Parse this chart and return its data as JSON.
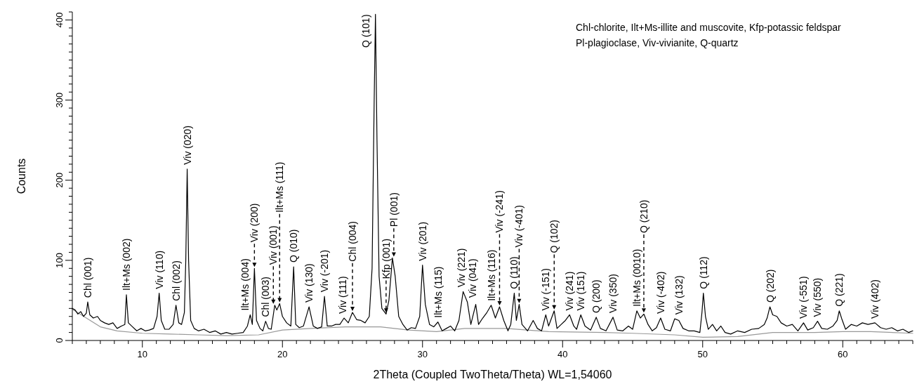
{
  "chart_data": {
    "type": "line",
    "xlabel": "2Theta (Coupled TwoTheta/Theta) WL=1,54060",
    "ylabel": "Counts",
    "xlim": [
      5,
      65
    ],
    "ylim": [
      0,
      410
    ],
    "xticks": [
      {
        "value": 5,
        "label": null
      },
      {
        "value": 6,
        "label": null
      },
      {
        "value": 7,
        "label": null
      },
      {
        "value": 8,
        "label": null
      },
      {
        "value": 9,
        "label": null
      },
      10,
      {
        "value": 11,
        "label": null
      },
      {
        "value": 12,
        "label": null
      },
      {
        "value": 13,
        "label": null
      },
      {
        "value": 14,
        "label": null
      },
      {
        "value": 15,
        "label": null
      },
      {
        "value": 16,
        "label": null
      },
      {
        "value": 17,
        "label": null
      },
      {
        "value": 18,
        "label": null
      },
      {
        "value": 19,
        "label": null
      },
      20,
      {
        "value": 21,
        "label": null
      },
      {
        "value": 22,
        "label": null
      },
      {
        "value": 23,
        "label": null
      },
      {
        "value": 24,
        "label": null
      },
      {
        "value": 25,
        "label": null
      },
      {
        "value": 26,
        "label": null
      },
      {
        "value": 27,
        "label": null
      },
      {
        "value": 28,
        "label": null
      },
      {
        "value": 29,
        "label": null
      },
      30,
      {
        "value": 31,
        "label": null
      },
      {
        "value": 32,
        "label": null
      },
      {
        "value": 33,
        "label": null
      },
      {
        "value": 34,
        "label": null
      },
      {
        "value": 35,
        "label": null
      },
      {
        "value": 36,
        "label": null
      },
      {
        "value": 37,
        "label": null
      },
      {
        "value": 38,
        "label": null
      },
      {
        "value": 39,
        "label": null
      },
      40,
      {
        "value": 41,
        "label": null
      },
      {
        "value": 42,
        "label": null
      },
      {
        "value": 43,
        "label": null
      },
      {
        "value": 44,
        "label": null
      },
      {
        "value": 45,
        "label": null
      },
      {
        "value": 46,
        "label": null
      },
      {
        "value": 47,
        "label": null
      },
      {
        "value": 48,
        "label": null
      },
      {
        "value": 49,
        "label": null
      },
      50,
      {
        "value": 51,
        "label": null
      },
      {
        "value": 52,
        "label": null
      },
      {
        "value": 53,
        "label": null
      },
      {
        "value": 54,
        "label": null
      },
      {
        "value": 55,
        "label": null
      },
      {
        "value": 56,
        "label": null
      },
      {
        "value": 57,
        "label": null
      },
      {
        "value": 58,
        "label": null
      },
      {
        "value": 59,
        "label": null
      },
      60,
      {
        "value": 61,
        "label": null
      },
      {
        "value": 62,
        "label": null
      },
      {
        "value": 63,
        "label": null
      },
      {
        "value": 64,
        "label": null
      },
      {
        "value": 65,
        "label": null
      }
    ],
    "yticks": [
      0,
      {
        "value": 10,
        "label": null
      },
      {
        "value": 20,
        "label": null
      },
      {
        "value": 30,
        "label": null
      },
      {
        "value": 40,
        "label": null
      },
      {
        "value": 50,
        "label": null
      },
      {
        "value": 60,
        "label": null
      },
      {
        "value": 70,
        "label": null
      },
      {
        "value": 80,
        "label": null
      },
      {
        "value": 90,
        "label": null
      },
      100,
      {
        "value": 110,
        "label": null
      },
      {
        "value": 120,
        "label": null
      },
      {
        "value": 130,
        "label": null
      },
      {
        "value": 140,
        "label": null
      },
      {
        "value": 150,
        "label": null
      },
      {
        "value": 160,
        "label": null
      },
      {
        "value": 170,
        "label": null
      },
      {
        "value": 180,
        "label": null
      },
      {
        "value": 190,
        "label": null
      },
      200,
      {
        "value": 210,
        "label": null
      },
      {
        "value": 220,
        "label": null
      },
      {
        "value": 230,
        "label": null
      },
      {
        "value": 240,
        "label": null
      },
      {
        "value": 250,
        "label": null
      },
      {
        "value": 260,
        "label": null
      },
      {
        "value": 270,
        "label": null
      },
      {
        "value": 280,
        "label": null
      },
      {
        "value": 290,
        "label": null
      },
      300,
      {
        "value": 310,
        "label": null
      },
      {
        "value": 320,
        "label": null
      },
      {
        "value": 330,
        "label": null
      },
      {
        "value": 340,
        "label": null
      },
      {
        "value": 350,
        "label": null
      },
      {
        "value": 360,
        "label": null
      },
      {
        "value": 370,
        "label": null
      },
      {
        "value": 380,
        "label": null
      },
      {
        "value": 390,
        "label": null
      },
      400,
      {
        "value": 410,
        "label": null
      }
    ],
    "series": [
      {
        "color": "#999999",
        "x": [
          5,
          7,
          8.2,
          10,
          12,
          14,
          16,
          18.3,
          20,
          22,
          24.5,
          27,
          29,
          31,
          33,
          36,
          39,
          43,
          45,
          48,
          50,
          52.5,
          55,
          58,
          60,
          62,
          65
        ],
        "values": [
          39,
          17,
          12,
          9,
          8,
          7,
          6,
          7,
          13,
          15,
          17,
          17,
          13,
          11,
          15,
          15,
          11,
          10,
          9,
          7,
          4,
          5,
          10,
          10,
          11,
          11,
          9
        ]
      },
      {
        "color": "#000000",
        "x": [
          5.0,
          5.2,
          5.4,
          5.6,
          5.8,
          6.0,
          6.1,
          6.25,
          6.5,
          6.8,
          7.0,
          7.3,
          7.6,
          7.9,
          8.2,
          8.5,
          8.75,
          8.86,
          9.0,
          9.3,
          9.6,
          9.9,
          10.2,
          10.5,
          10.8,
          11.05,
          11.2,
          11.35,
          11.6,
          11.9,
          12.2,
          12.4,
          12.6,
          12.8,
          13.0,
          13.1,
          13.2,
          13.3,
          13.45,
          13.7,
          14.0,
          14.4,
          14.8,
          15.2,
          15.6,
          16.0,
          16.4,
          16.8,
          17.2,
          17.5,
          17.7,
          17.85,
          18.0,
          18.15,
          18.4,
          18.6,
          18.8,
          19.0,
          19.2,
          19.45,
          19.6,
          19.8,
          20.0,
          20.3,
          20.6,
          20.8,
          20.95,
          21.2,
          21.5,
          21.9,
          22.2,
          22.5,
          22.8,
          23.0,
          23.2,
          23.5,
          23.8,
          24.1,
          24.4,
          24.7,
          25.0,
          25.3,
          25.6,
          25.9,
          26.2,
          26.4,
          26.55,
          26.64,
          26.75,
          26.9,
          27.1,
          27.4,
          27.6,
          27.85,
          28.05,
          28.3,
          28.6,
          28.9,
          29.2,
          29.5,
          29.8,
          30.0,
          30.2,
          30.5,
          30.8,
          31.1,
          31.4,
          31.7,
          32.0,
          32.3,
          32.6,
          32.9,
          33.2,
          33.45,
          33.8,
          34.0,
          34.3,
          34.6,
          34.9,
          35.2,
          35.5,
          35.8,
          36.1,
          36.3,
          36.55,
          36.7,
          36.9,
          37.1,
          37.5,
          37.9,
          38.2,
          38.5,
          38.8,
          39.0,
          39.4,
          39.6,
          39.9,
          40.2,
          40.5,
          40.8,
          41.0,
          41.3,
          41.6,
          42.0,
          42.4,
          42.7,
          43.1,
          43.6,
          43.9,
          44.3,
          44.7,
          45.0,
          45.3,
          45.55,
          45.8,
          46.1,
          46.4,
          46.7,
          47.0,
          47.3,
          47.7,
          48.0,
          48.3,
          48.6,
          49.0,
          49.4,
          49.8,
          49.95,
          50.05,
          50.2,
          50.4,
          50.7,
          51.0,
          51.3,
          51.6,
          52.0,
          52.5,
          53.0,
          53.5,
          54.0,
          54.4,
          54.6,
          54.8,
          55.0,
          55.3,
          55.6,
          56.0,
          56.4,
          56.8,
          57.2,
          57.5,
          57.9,
          58.2,
          58.5,
          58.9,
          59.3,
          59.6,
          59.75,
          59.95,
          60.2,
          60.6,
          61.0,
          61.4,
          61.8,
          62.3,
          62.7,
          63.1,
          63.5,
          63.9,
          64.3,
          64.7,
          65.0
        ],
        "values": [
          40,
          38,
          33,
          36,
          30,
          34,
          48,
          32,
          28,
          30,
          25,
          22,
          20,
          22,
          15,
          18,
          20,
          57,
          22,
          17,
          12,
          15,
          12,
          13,
          15,
          30,
          59,
          25,
          14,
          14,
          20,
          44,
          22,
          20,
          35,
          100,
          214,
          100,
          25,
          15,
          12,
          14,
          10,
          12,
          8,
          10,
          8,
          9,
          10,
          18,
          32,
          20,
          90,
          25,
          15,
          12,
          24,
          15,
          14,
          44,
          38,
          46,
          30,
          22,
          18,
          92,
          20,
          16,
          18,
          42,
          18,
          15,
          17,
          55,
          18,
          18,
          20,
          20,
          28,
          22,
          35,
          26,
          25,
          22,
          30,
          90,
          300,
          407,
          250,
          80,
          40,
          33,
          50,
          103,
          80,
          30,
          20,
          13,
          16,
          15,
          30,
          94,
          45,
          20,
          17,
          23,
          12,
          15,
          18,
          12,
          25,
          61,
          48,
          20,
          45,
          20,
          28,
          35,
          44,
          28,
          42,
          25,
          12,
          20,
          59,
          25,
          45,
          20,
          12,
          25,
          15,
          12,
          32,
          18,
          37,
          15,
          20,
          25,
          32,
          18,
          14,
          32,
          18,
          13,
          29,
          15,
          12,
          29,
          13,
          12,
          18,
          14,
          37,
          28,
          33,
          20,
          12,
          16,
          28,
          14,
          12,
          27,
          25,
          15,
          12,
          12,
          10,
          35,
          59,
          30,
          14,
          20,
          12,
          18,
          10,
          8,
          12,
          10,
          14,
          15,
          20,
          28,
          42,
          32,
          30,
          22,
          18,
          20,
          12,
          22,
          13,
          16,
          24,
          15,
          14,
          18,
          25,
          37,
          26,
          14,
          20,
          18,
          22,
          20,
          22,
          16,
          14,
          16,
          12,
          14,
          10,
          12
        ]
      }
    ],
    "annotations": [
      "Chl-chlorite, Ilt+Ms-illite and muscovite, Kfp-potassic feldspar",
      "Pl-plagioclase, Viv-vivianite,  Q-quartz",
      {
        "text": "Chl (001)",
        "x": 6.1,
        "y": 48
      },
      {
        "text": "Ilt+Ms (002)",
        "x": 8.86,
        "y": 57
      },
      {
        "text": "Viv (110)",
        "x": 11.2,
        "y": 59
      },
      {
        "text": "Chl (002)",
        "x": 12.4,
        "y": 44
      },
      {
        "text": "Viv (020)",
        "x": 13.2,
        "y": 214
      },
      {
        "text": "Ilt+Ms (004)",
        "x": 17.7,
        "y": 32
      },
      {
        "text": "Viv (200)",
        "x": 18.0,
        "y": 90
      },
      {
        "text": "Chl (003)",
        "x": 18.8,
        "y": 24
      },
      {
        "text": "Viv (001)",
        "x": 19.35,
        "y": 44
      },
      {
        "text": "Ilt+Ms (111)",
        "x": 19.8,
        "y": 46
      },
      {
        "text": "Q (010)",
        "x": 20.8,
        "y": 92
      },
      {
        "text": "Viv (130)",
        "x": 21.9,
        "y": 42
      },
      {
        "text": "Viv (-201)",
        "x": 23.0,
        "y": 55
      },
      {
        "text": "Viv (111)",
        "x": 24.3,
        "y": 28
      },
      {
        "text": "Chl (004)",
        "x": 25.0,
        "y": 35
      },
      {
        "text": "Q (101)",
        "x": 26.64,
        "y": 407
      },
      {
        "text": "Kfp (001)",
        "x": 27.4,
        "y": 33
      },
      {
        "text": "Pl (001)",
        "x": 27.95,
        "y": 103
      },
      {
        "text": "Viv (201)",
        "x": 30.0,
        "y": 94
      },
      {
        "text": "Ilt+Ms (115)",
        "x": 31.1,
        "y": 23
      },
      {
        "text": "Viv (221)",
        "x": 32.75,
        "y": 61
      },
      {
        "text": "Viv (041)",
        "x": 33.2,
        "y": 48
      },
      {
        "text": "Ilt+Ms (116)",
        "x": 34.9,
        "y": 44
      },
      {
        "text": "Viv (-241)",
        "x": 35.5,
        "y": 42
      },
      {
        "text": "Q (110)",
        "x": 36.55,
        "y": 59
      },
      {
        "text": "Viv (-401)",
        "x": 36.9,
        "y": 45
      },
      {
        "text": "Viv (-151)",
        "x": 38.8,
        "y": 32
      },
      {
        "text": "Q (102)",
        "x": 39.4,
        "y": 37
      },
      {
        "text": "Viv (241)",
        "x": 40.5,
        "y": 32
      },
      {
        "text": "Viv (151)",
        "x": 41.3,
        "y": 32
      },
      {
        "text": "Q (200)",
        "x": 42.4,
        "y": 29
      },
      {
        "text": "Viv (350)",
        "x": 43.6,
        "y": 29
      },
      {
        "text": "Ilt+Ms (0010)",
        "x": 45.3,
        "y": 37
      },
      {
        "text": "Q (210)",
        "x": 45.8,
        "y": 33
      },
      {
        "text": "Viv (-402)",
        "x": 47.0,
        "y": 28
      },
      {
        "text": "Viv (132)",
        "x": 48.3,
        "y": 25
      },
      {
        "text": "Q (112)",
        "x": 50.05,
        "y": 59
      },
      {
        "text": "Q (202)",
        "x": 54.8,
        "y": 42
      },
      {
        "text": "Viv (-551)",
        "x": 57.2,
        "y": 22
      },
      {
        "text": "Viv (550)",
        "x": 58.2,
        "y": 24
      },
      {
        "text": "Q (221)",
        "x": 59.75,
        "y": 37
      },
      {
        "text": "Viv (402)",
        "x": 62.3,
        "y": 22
      }
    ]
  }
}
